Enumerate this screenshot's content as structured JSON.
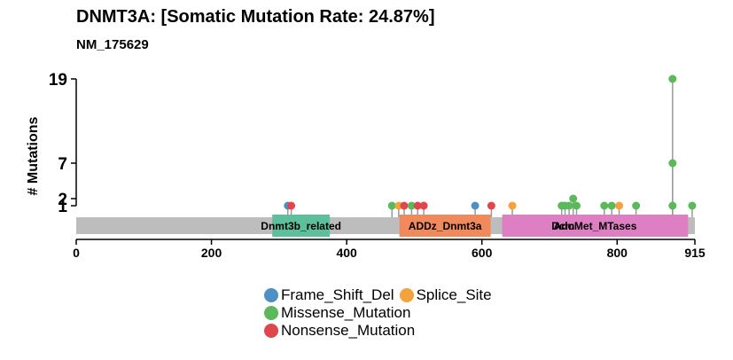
{
  "title": "DNMT3A: [Somatic Mutation Rate: 24.87%]",
  "subtitle": "NM_175629",
  "colors": {
    "Frame_Shift_Del": "#4e8fc6",
    "Splice_Site": "#f3a23d",
    "Missense_Mutation": "#5bb85b",
    "Nonsense_Mutation": "#e0474c",
    "domain_Dnmt3b_related": "#5dbf9b",
    "domain_ADDz_Dnmt3a": "#f08a5d",
    "domain_AdoMet_MTases": "#df7fc3",
    "protein_bar": "#bdbdbd"
  },
  "legend": [
    {
      "label": "Frame_Shift_Del",
      "color_key": "Frame_Shift_Del"
    },
    {
      "label": "Splice_Site",
      "color_key": "Splice_Site"
    },
    {
      "label": "Missense_Mutation",
      "color_key": "Missense_Mutation"
    },
    {
      "label": "Nonsense_Mutation",
      "color_key": "Nonsense_Mutation"
    }
  ],
  "chart_data": {
    "type": "lollipop",
    "title": "DNMT3A: [Somatic Mutation Rate: 24.87%]",
    "subtitle": "NM_175629",
    "ylabel": "# Mutations",
    "xlabel": "",
    "xlim": [
      0,
      915
    ],
    "x_ticks": [
      0,
      200,
      400,
      600,
      800,
      915
    ],
    "y_ticks": [
      1,
      2,
      7,
      19
    ],
    "ylim": [
      1,
      19
    ],
    "protein_length": 915,
    "domains": [
      {
        "name": "Dnmt3b_related",
        "start": 290,
        "end": 375,
        "color_key": "domain_Dnmt3b_related"
      },
      {
        "name": "ADDz_Dnmt3a",
        "start": 478,
        "end": 613,
        "color_key": "domain_ADDz_Dnmt3a"
      },
      {
        "name": "AdoMet_MTases",
        "start": 630,
        "end": 905,
        "color_key": "domain_AdoMet_MTases"
      },
      {
        "name": "Dcm",
        "start": 715,
        "end": 725,
        "color_key": "domain_AdoMet_MTases"
      }
    ],
    "mutations": [
      {
        "pos": 313,
        "count": 1,
        "type": "Frame_Shift_Del"
      },
      {
        "pos": 318,
        "count": 1,
        "type": "Nonsense_Mutation"
      },
      {
        "pos": 467,
        "count": 1,
        "type": "Missense_Mutation"
      },
      {
        "pos": 477,
        "count": 1,
        "type": "Splice_Site"
      },
      {
        "pos": 485,
        "count": 1,
        "type": "Nonsense_Mutation"
      },
      {
        "pos": 496,
        "count": 1,
        "type": "Missense_Mutation"
      },
      {
        "pos": 505,
        "count": 1,
        "type": "Nonsense_Mutation"
      },
      {
        "pos": 514,
        "count": 1,
        "type": "Nonsense_Mutation"
      },
      {
        "pos": 590,
        "count": 1,
        "type": "Frame_Shift_Del"
      },
      {
        "pos": 614,
        "count": 1,
        "type": "Nonsense_Mutation"
      },
      {
        "pos": 645,
        "count": 1,
        "type": "Splice_Site"
      },
      {
        "pos": 718,
        "count": 1,
        "type": "Missense_Mutation"
      },
      {
        "pos": 723,
        "count": 1,
        "type": "Missense_Mutation"
      },
      {
        "pos": 729,
        "count": 1,
        "type": "Missense_Mutation"
      },
      {
        "pos": 735,
        "count": 2,
        "type": "Missense_Mutation"
      },
      {
        "pos": 740,
        "count": 1,
        "type": "Missense_Mutation"
      },
      {
        "pos": 781,
        "count": 1,
        "type": "Missense_Mutation"
      },
      {
        "pos": 792,
        "count": 1,
        "type": "Missense_Mutation"
      },
      {
        "pos": 803,
        "count": 1,
        "type": "Splice_Site"
      },
      {
        "pos": 828,
        "count": 1,
        "type": "Missense_Mutation"
      },
      {
        "pos": 882,
        "count": 19,
        "type": "Missense_Mutation"
      },
      {
        "pos": 882,
        "count": 7,
        "type": "Missense_Mutation"
      },
      {
        "pos": 882,
        "count": 1,
        "type": "Missense_Mutation"
      },
      {
        "pos": 911,
        "count": 1,
        "type": "Missense_Mutation"
      }
    ]
  }
}
